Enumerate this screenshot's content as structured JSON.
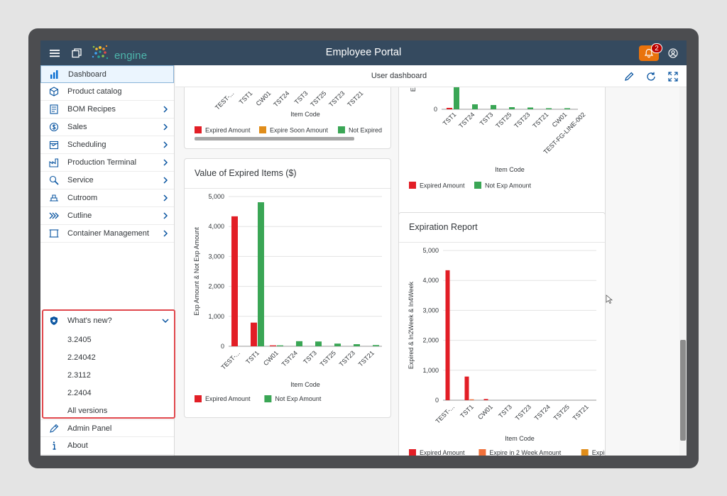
{
  "shell": {
    "app_title": "Employee Portal",
    "logo_text": "engine",
    "notification_count": "2",
    "accent_color": "#e9730c"
  },
  "sidebar": {
    "items": [
      {
        "label": "Dashboard",
        "icon": "dashboard-icon",
        "selected": true
      },
      {
        "label": "Product catalog",
        "icon": "cube-icon"
      },
      {
        "label": "BOM Recipes",
        "icon": "recipe-icon",
        "has_children": true
      },
      {
        "label": "Sales",
        "icon": "money-icon",
        "has_children": true
      },
      {
        "label": "Scheduling",
        "icon": "calendar-icon",
        "has_children": true
      },
      {
        "label": "Production Terminal",
        "icon": "factory-icon",
        "has_children": true
      },
      {
        "label": "Service",
        "icon": "wrench-icon",
        "has_children": true
      },
      {
        "label": "Cutroom",
        "icon": "cutter-icon",
        "has_children": true
      },
      {
        "label": "Cutline",
        "icon": "chevrons-icon",
        "has_children": true
      },
      {
        "label": "Container Management",
        "icon": "container-icon",
        "has_children": true
      }
    ],
    "whats_new": {
      "label": "What's new?",
      "versions": [
        "3.2405",
        "2.24042",
        "2.3112",
        "2.2404"
      ],
      "all_versions": "All versions"
    },
    "admin_panel": "Admin Panel",
    "about": "About"
  },
  "toolbar": {
    "title": "User dashboard"
  },
  "cards": {
    "top_left": {
      "categories": [
        "TEST-...",
        "TST1",
        "CW01",
        "TST24",
        "TST3",
        "TST25",
        "TST23",
        "TST21"
      ],
      "xlabel": "Item Code",
      "legend": [
        "Expired Amount",
        "Expire Soon Amount",
        "Not Expired"
      ]
    },
    "top_right": {
      "ylabel": "Ex",
      "y_zero": "0",
      "categories": [
        "TST1",
        "TST24",
        "TST3",
        "TST25",
        "TST23",
        "TST21",
        "CW01",
        "TEST-FG-LINE-002"
      ],
      "xlabel": "Item Code",
      "legend": [
        "Expired Amount",
        "Not Exp Amount"
      ]
    },
    "value_expired": {
      "title": "Value of Expired Items ($)"
    },
    "expiration_report": {
      "title": "Expiration Report"
    }
  },
  "chart_data": [
    {
      "type": "bar",
      "title": "Value of Expired Items ($)",
      "xlabel": "Item Code",
      "ylabel": "Exp Amount & Not Exp Amount",
      "ylim": [
        0,
        5000
      ],
      "yticks": [
        "0",
        "1,000",
        "2,000",
        "3,000",
        "4,000",
        "5,000"
      ],
      "categories": [
        "TEST-...",
        "TST1",
        "CW01",
        "TST24",
        "TST3",
        "TST25",
        "TST23",
        "TST21"
      ],
      "series": [
        {
          "name": "Expired Amount",
          "color": "#e21e26",
          "values": [
            4340,
            790,
            30,
            0,
            0,
            0,
            0,
            0
          ]
        },
        {
          "name": "Not Exp Amount",
          "color": "#3aa655",
          "values": [
            0,
            4810,
            30,
            170,
            160,
            90,
            70,
            40
          ]
        }
      ],
      "legend": "bottom"
    },
    {
      "type": "bar",
      "title": "Expiration Report",
      "xlabel": "Item Code",
      "ylabel": "Expired & In2Week & In4Week",
      "ylim": [
        0,
        5000
      ],
      "yticks": [
        "0",
        "1,000",
        "2,000",
        "3,000",
        "4,000",
        "5,000"
      ],
      "categories": [
        "TEST-...",
        "TST1",
        "CW01",
        "TST3",
        "TST23",
        "TST24",
        "TST25",
        "TST21"
      ],
      "series": [
        {
          "name": "Expired Amount",
          "color": "#e21e26",
          "values": [
            4340,
            790,
            40,
            0,
            0,
            0,
            0,
            0
          ]
        },
        {
          "name": "Expire in 2 Week Amount",
          "color": "#f0703a",
          "values": [
            0,
            30,
            0,
            0,
            0,
            0,
            0,
            0
          ]
        },
        {
          "name": "Expire",
          "color": "#e08d1a",
          "values": [
            0,
            0,
            0,
            0,
            0,
            0,
            0,
            0
          ]
        }
      ],
      "legend": "bottom"
    }
  ]
}
